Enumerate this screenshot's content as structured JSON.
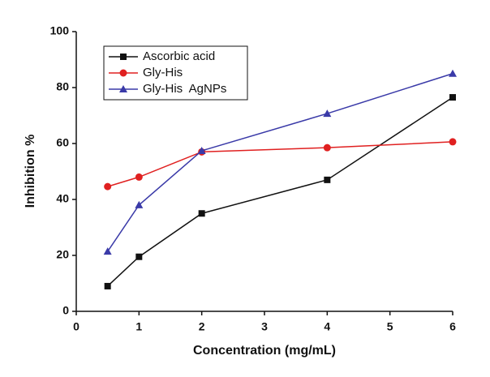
{
  "chart_data": {
    "type": "line",
    "xlabel": "Concentration (mg/mL)",
    "ylabel": "Inhibition %",
    "x": [
      0.5,
      1,
      2,
      4,
      6
    ],
    "series": [
      {
        "name": "Ascorbic acid",
        "color": "#111111",
        "marker": "square",
        "values": [
          9,
          19.5,
          35,
          47,
          76.5
        ]
      },
      {
        "name": "Gly-His",
        "color": "#e02020",
        "marker": "circle",
        "values": [
          44.6,
          48,
          57,
          58.5,
          60.6
        ]
      },
      {
        "name": "Gly-His  AgNPs",
        "color": "#3a3aa8",
        "marker": "triangle",
        "values": [
          21.4,
          38,
          57.4,
          70.7,
          85
        ]
      }
    ],
    "xlim": [
      0,
      6
    ],
    "xticks": [
      0,
      1,
      2,
      3,
      4,
      5,
      6
    ],
    "ylim": [
      0,
      100
    ],
    "yticks": [
      0,
      20,
      40,
      60,
      80,
      100
    ],
    "legend": "upper left",
    "grid": false
  }
}
